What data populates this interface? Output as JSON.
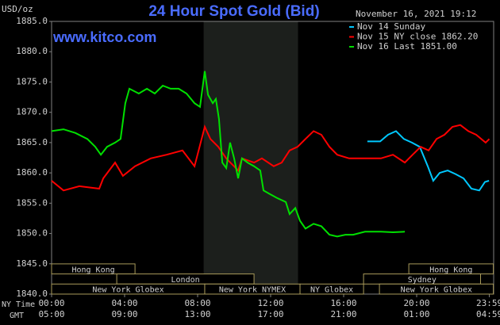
{
  "chart_data": {
    "type": "line",
    "title": "24 Hour Spot Gold (Bid)",
    "website": "www.kitco.com",
    "timestamp": "November 16, 2021 19:12",
    "y_axis_label": "USD/oz",
    "x_axis_labels": [
      "NY Time",
      "GMT"
    ],
    "xlim": [
      0,
      24
    ],
    "xticks": [
      {
        "value": 0,
        "label": "00:00"
      },
      {
        "value": 4,
        "label": "04:00"
      },
      {
        "value": 8,
        "label": "08:00"
      },
      {
        "value": 12,
        "label": "12:00"
      },
      {
        "value": 16,
        "label": "16:00"
      },
      {
        "value": 20,
        "label": "20:00"
      },
      {
        "value": 23.98,
        "label": "23:59"
      }
    ],
    "gmt_tick_labels": [
      "05:00",
      "09:00",
      "13:00",
      "17:00",
      "21:00",
      "01:00",
      "04:59"
    ],
    "ylim": [
      1840,
      1885
    ],
    "yticks": [
      {
        "value": 1840,
        "label": "1840.0"
      },
      {
        "value": 1845,
        "label": "1845.0"
      },
      {
        "value": 1850,
        "label": "1850.0"
      },
      {
        "value": 1855,
        "label": "1855.0"
      },
      {
        "value": 1860,
        "label": "1860.0"
      },
      {
        "value": 1865,
        "label": "1865.0"
      },
      {
        "value": 1870,
        "label": "1870.0"
      },
      {
        "value": 1875,
        "label": "1875.0"
      },
      {
        "value": 1880,
        "label": "1880.0"
      },
      {
        "value": 1885,
        "label": "1885.0"
      }
    ],
    "grid": false,
    "legend": "top-right",
    "shaded_span": {
      "start": 8.33,
      "end": 13.5
    },
    "session_rows": [
      [
        {
          "label": "Hong Kong",
          "start": 0,
          "end": 4.57
        },
        {
          "label": "Hong Kong",
          "start": 19.57,
          "end": 24.2
        }
      ],
      [
        {
          "label": "London",
          "start": 3.57,
          "end": 11.09
        },
        {
          "label": "Sydney",
          "start": 17.09,
          "end": 23.5
        }
      ],
      [
        {
          "label": "New York Globex",
          "start": 0,
          "end": 8.39
        },
        {
          "label": "New York NYMEX",
          "start": 8.39,
          "end": 13.61
        },
        {
          "label": "NY Globex",
          "start": 13.61,
          "end": 17.09
        },
        {
          "label": "New York Globex",
          "start": 17.96,
          "end": 24.2
        }
      ]
    ],
    "series": [
      {
        "name": "Nov 14 Sunday",
        "color": "#00c8ff",
        "x": [
          17.3,
          18.0,
          18.43,
          18.87,
          19.3,
          19.74,
          20.17,
          20.61,
          20.91,
          21.26,
          21.7,
          22.13,
          22.57,
          23.0,
          23.43,
          23.74,
          23.96
        ],
        "values": [
          1865.2,
          1865.2,
          1866.3,
          1866.9,
          1865.6,
          1865.0,
          1864.3,
          1861.1,
          1858.7,
          1860.0,
          1860.4,
          1859.8,
          1859.1,
          1857.4,
          1857.1,
          1858.5,
          1858.7
        ]
      },
      {
        "name": "Nov 15 NY close 1862.20",
        "color": "#ff0000",
        "x": [
          0,
          0.65,
          1.52,
          2.61,
          2.83,
          3.48,
          3.91,
          4.57,
          5.43,
          6.3,
          7.17,
          7.83,
          8.39,
          8.7,
          9.13,
          9.57,
          10.22,
          10.43,
          11.09,
          11.52,
          12.17,
          12.61,
          13.04,
          13.48,
          13.91,
          14.35,
          14.78,
          15.22,
          15.65,
          16.3,
          17.17,
          18.04,
          18.7,
          19.35,
          19.78,
          20.22,
          20.65,
          21.09,
          21.52,
          21.96,
          22.39,
          22.83,
          23.26,
          23.78,
          23.98
        ],
        "values": [
          1858.7,
          1857.1,
          1857.8,
          1857.4,
          1859.1,
          1861.7,
          1859.5,
          1861.1,
          1862.4,
          1863.0,
          1863.7,
          1861.1,
          1867.6,
          1865.6,
          1864.3,
          1862.4,
          1860.4,
          1862.4,
          1861.7,
          1862.4,
          1861.1,
          1861.7,
          1863.7,
          1864.3,
          1865.6,
          1866.9,
          1866.3,
          1864.3,
          1863.0,
          1862.4,
          1862.4,
          1862.4,
          1863.0,
          1861.7,
          1863.0,
          1864.3,
          1863.7,
          1865.6,
          1866.3,
          1867.6,
          1867.9,
          1866.9,
          1866.3,
          1865.0,
          1865.6
        ]
      },
      {
        "name": "Nov 16 Last 1851.00",
        "color": "#00e000",
        "x": [
          0,
          0.65,
          1.3,
          1.96,
          2.39,
          2.7,
          3.04,
          3.48,
          3.78,
          4.04,
          4.26,
          4.78,
          5.22,
          5.65,
          6.09,
          6.52,
          6.96,
          7.39,
          7.83,
          8.13,
          8.39,
          8.57,
          8.83,
          9.0,
          9.17,
          9.35,
          9.57,
          9.78,
          10.0,
          10.22,
          10.43,
          10.74,
          11.09,
          11.43,
          11.61,
          11.96,
          12.39,
          12.83,
          13.04,
          13.35,
          13.61,
          13.91,
          14.35,
          14.78,
          15.22,
          15.65,
          16.09,
          16.52,
          17.17,
          18.04,
          18.7,
          19.35
        ],
        "values": [
          1866.9,
          1867.2,
          1866.6,
          1865.6,
          1864.3,
          1863.0,
          1864.3,
          1865.0,
          1865.6,
          1871.5,
          1873.9,
          1873.1,
          1873.9,
          1873.1,
          1874.4,
          1873.9,
          1873.9,
          1873.1,
          1871.5,
          1870.9,
          1876.8,
          1872.9,
          1871.5,
          1872.2,
          1868.9,
          1861.7,
          1860.8,
          1865.0,
          1862.4,
          1859.1,
          1862.4,
          1861.7,
          1861.1,
          1860.4,
          1857.1,
          1856.5,
          1855.8,
          1855.2,
          1853.2,
          1854.2,
          1852.1,
          1850.8,
          1851.6,
          1851.2,
          1849.8,
          1849.5,
          1849.8,
          1849.8,
          1850.3,
          1850.3,
          1850.2,
          1850.3
        ]
      }
    ]
  }
}
